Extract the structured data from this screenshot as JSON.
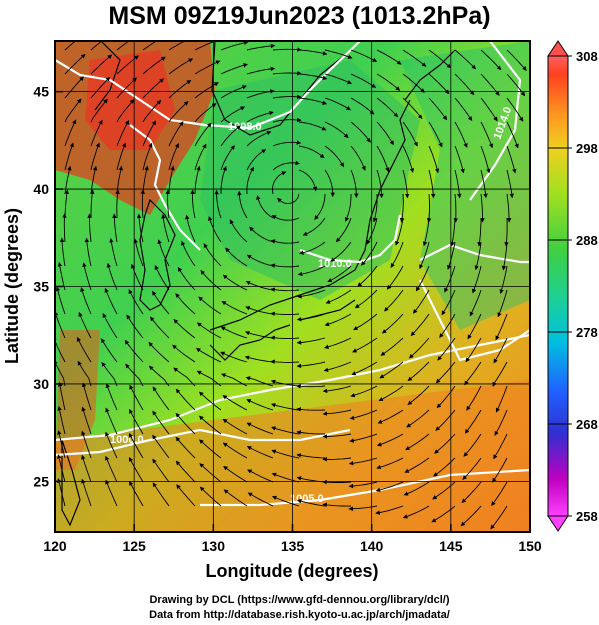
{
  "title": "MSM 09Z19Jun2023 (1013.2hPa)",
  "map": {
    "xaxis": {
      "label": "Longitude (degrees)",
      "range": [
        120,
        150
      ],
      "ticks": [
        "120",
        "125",
        "130",
        "135",
        "140",
        "145",
        "150"
      ]
    },
    "yaxis": {
      "label": "Latitude  (degrees)",
      "range": [
        22.4,
        47.6
      ],
      "ticks": [
        "25",
        "30",
        "35",
        "40",
        "45"
      ]
    },
    "grid": true,
    "grid_color": "#000000"
  },
  "colorbar": {
    "ticks": [
      "308",
      "298",
      "288",
      "278",
      "268",
      "258"
    ],
    "range": [
      258,
      308
    ],
    "colors": [
      "#ff40ff",
      "#c000c0",
      "#2020ff",
      "#00a0ff",
      "#00e0e0",
      "#20d080",
      "#40d040",
      "#80e020",
      "#e0e020",
      "#ffc020",
      "#ff8020",
      "#ff3020",
      "#ff5050"
    ]
  },
  "contours": {
    "labels": [
      "1000.0",
      "1005.0",
      "1008.0",
      "1010.0",
      "1012.0",
      "1013.0",
      "1014.0"
    ],
    "color": "#ffffff"
  },
  "credits": {
    "line1": "Drawing by DCL (https://www.gfd-dennou.org/library/dcl/)",
    "line2": "Data from http://database.rish.kyoto-u.ac.jp/arch/jmadata/"
  }
}
